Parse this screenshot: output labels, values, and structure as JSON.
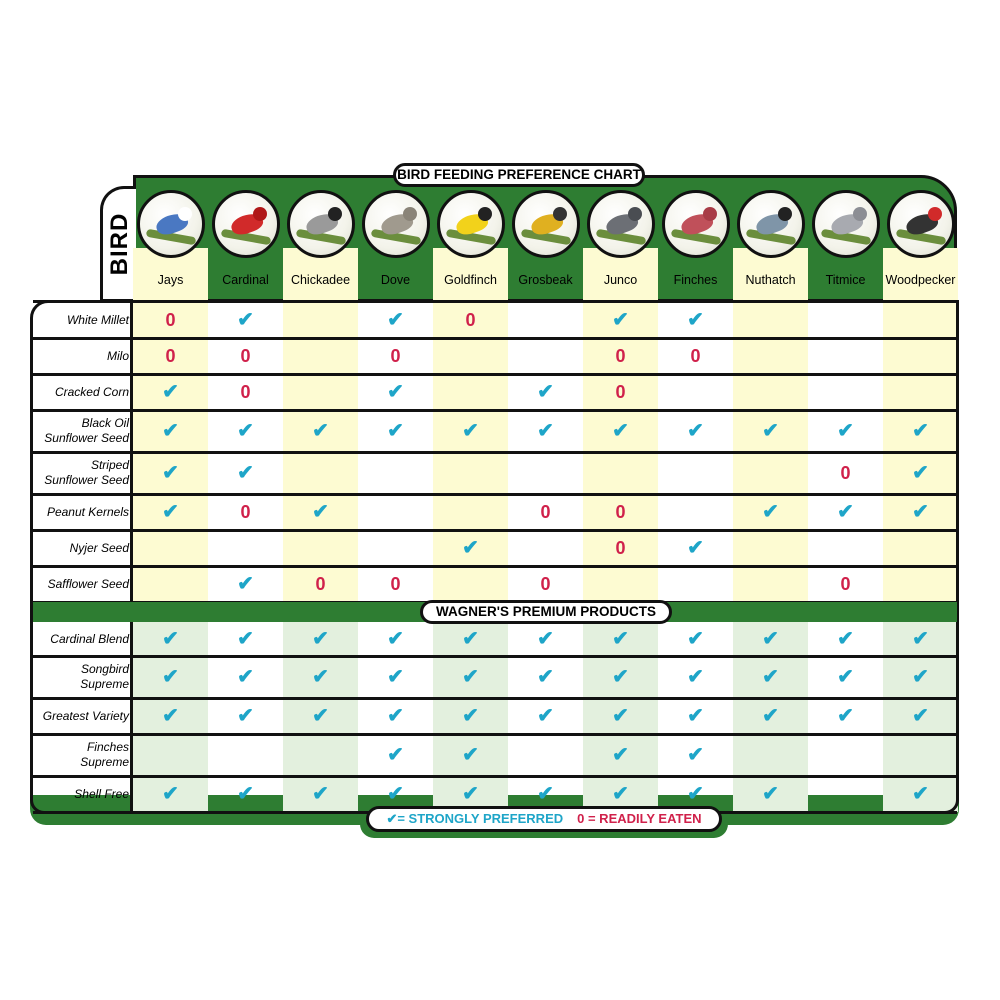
{
  "title": "BIRD FEEDING PREFERENCE CHART",
  "bird_tab_label": "BIRD",
  "products_header": "WAGNER'S PREMIUM PRODUCTS",
  "legend": {
    "preferred": "✔= STRONGLY PREFERRED",
    "eaten": "0 = READILY EATEN"
  },
  "colors": {
    "green": "#2e7d32",
    "check": "#1ea5c8",
    "zero": "#d0214b",
    "yellow_col": "#fdfbd2",
    "green_col": "#e3f0de"
  },
  "symbols": {
    "P": "✔",
    "E": "0"
  },
  "chart_data": {
    "type": "table",
    "title": "BIRD FEEDING PREFERENCE CHART",
    "columns": [
      {
        "name": "Jays",
        "color": "#4a78c2",
        "accent": "#ffffff"
      },
      {
        "name": "Cardinal",
        "color": "#d12a2a",
        "accent": "#b01818"
      },
      {
        "name": "Chickadee",
        "color": "#9a9a9a",
        "accent": "#222222"
      },
      {
        "name": "Dove",
        "color": "#a09a8e",
        "accent": "#8a8478"
      },
      {
        "name": "Goldfinch",
        "color": "#f2d21b",
        "accent": "#222222"
      },
      {
        "name": "Grosbeak",
        "color": "#e0b020",
        "accent": "#333333"
      },
      {
        "name": "Junco",
        "color": "#6c6f75",
        "accent": "#4a4d52"
      },
      {
        "name": "Finches",
        "color": "#c0505a",
        "accent": "#a83c46"
      },
      {
        "name": "Nuthatch",
        "color": "#7f95a8",
        "accent": "#222222"
      },
      {
        "name": "Titmice",
        "color": "#a8aab0",
        "accent": "#8c8e94"
      },
      {
        "name": "Woodpecker",
        "color": "#333333",
        "accent": "#d12a2a"
      }
    ],
    "seed_rows": [
      {
        "label": [
          "White Millet"
        ],
        "values": [
          "E",
          "P",
          "",
          "P",
          "E",
          "",
          "P",
          "P",
          "",
          "",
          ""
        ]
      },
      {
        "label": [
          "Milo"
        ],
        "values": [
          "E",
          "E",
          "",
          "E",
          "",
          "",
          "E",
          "E",
          "",
          "",
          ""
        ]
      },
      {
        "label": [
          "Cracked Corn"
        ],
        "values": [
          "P",
          "E",
          "",
          "P",
          "",
          "P",
          "E",
          "",
          "",
          "",
          ""
        ]
      },
      {
        "label": [
          "Black Oil",
          "Sunflower Seed"
        ],
        "values": [
          "P",
          "P",
          "P",
          "P",
          "P",
          "P",
          "P",
          "P",
          "P",
          "P",
          "P"
        ]
      },
      {
        "label": [
          "Striped",
          "Sunflower Seed"
        ],
        "values": [
          "P",
          "P",
          "",
          "",
          "",
          "",
          "",
          "",
          "",
          "E",
          "P"
        ]
      },
      {
        "label": [
          "Peanut Kernels"
        ],
        "values": [
          "P",
          "E",
          "P",
          "",
          "",
          "E",
          "E",
          "",
          "P",
          "P",
          "P"
        ]
      },
      {
        "label": [
          "Nyjer Seed"
        ],
        "values": [
          "",
          "",
          "",
          "",
          "P",
          "",
          "E",
          "P",
          "",
          "",
          ""
        ]
      },
      {
        "label": [
          "Safflower Seed"
        ],
        "values": [
          "",
          "P",
          "E",
          "E",
          "",
          "E",
          "",
          "",
          "",
          "E",
          ""
        ]
      }
    ],
    "product_rows": [
      {
        "label": [
          "Cardinal Blend"
        ],
        "values": [
          "P",
          "P",
          "P",
          "P",
          "P",
          "P",
          "P",
          "P",
          "P",
          "P",
          "P"
        ]
      },
      {
        "label": [
          "Songbird",
          "Supreme"
        ],
        "values": [
          "P",
          "P",
          "P",
          "P",
          "P",
          "P",
          "P",
          "P",
          "P",
          "P",
          "P"
        ]
      },
      {
        "label": [
          "Greatest Variety"
        ],
        "values": [
          "P",
          "P",
          "P",
          "P",
          "P",
          "P",
          "P",
          "P",
          "P",
          "P",
          "P"
        ]
      },
      {
        "label": [
          "Finches",
          "Supreme"
        ],
        "values": [
          "",
          "",
          "",
          "P",
          "P",
          "",
          "P",
          "P",
          "",
          "",
          ""
        ]
      },
      {
        "label": [
          "Shell Free"
        ],
        "values": [
          "P",
          "P",
          "P",
          "P",
          "P",
          "P",
          "P",
          "P",
          "P",
          "",
          "P"
        ]
      }
    ],
    "legend": {
      "P": "STRONGLY PREFERRED",
      "E": "READILY EATEN"
    }
  }
}
